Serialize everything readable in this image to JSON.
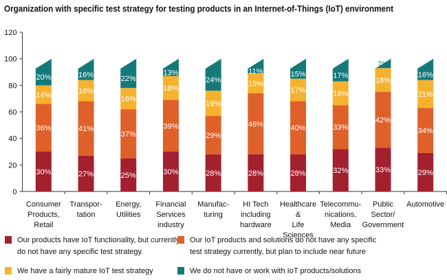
{
  "chart_data": {
    "type": "bar",
    "stacked": true,
    "title": "Organization with specific test strategy for testing products in an Internet-of-Things (IoT) environment",
    "xlabel": "",
    "ylabel": "",
    "ylim": [
      0,
      120
    ],
    "yticks": [
      0,
      20,
      40,
      60,
      80,
      100,
      120
    ],
    "grid": false,
    "legend_position": "bottom",
    "categories": [
      [
        "Consumer",
        "Products,",
        "Retail"
      ],
      [
        "Transpor-",
        "tation"
      ],
      [
        "Energy,",
        "Utilities"
      ],
      [
        "Financial",
        "Services",
        "industry"
      ],
      [
        "Manufac-",
        "turing"
      ],
      [
        "HI Tech",
        "including",
        "hardware"
      ],
      [
        "Healthcare",
        "&",
        "Life",
        "Sciences"
      ],
      [
        "Telecommu-",
        "nications,",
        "Media"
      ],
      [
        "Public",
        "Sector/",
        "Government"
      ],
      [
        "Automotive"
      ]
    ],
    "series": [
      {
        "name": "Our products have IoT functionality, but currently do not have any specific test strategy.",
        "legend_lines": [
          "Our products have IoT functionality, but currently",
          "do not have any specific test strategy."
        ],
        "color": "#a3202f",
        "values": [
          30,
          27,
          25,
          30,
          28,
          28,
          28,
          32,
          33,
          29
        ]
      },
      {
        "name": "Our IoT products and solutions do not have any specific test strategy currently, but plan to include near future",
        "legend_lines": [
          "Our IoT products and solutions do not have any specific",
          "test strategy currently, but plan to include near future"
        ],
        "color": "#e0602a",
        "values": [
          36,
          41,
          37,
          39,
          29,
          46,
          40,
          33,
          42,
          34
        ]
      },
      {
        "name": "We have a fairly mature IoT test strategy",
        "legend_lines": [
          "We have a fairly mature IoT test strategy"
        ],
        "color": "#f6b22f",
        "values": [
          14,
          16,
          16,
          18,
          19,
          15,
          17,
          18,
          18,
          21
        ]
      },
      {
        "name": "We do not  have or work with  IoT products/solutions",
        "legend_lines": [
          "We do not  have or work with  IoT products/solutions"
        ],
        "color": "#15797a",
        "values": [
          20,
          16,
          22,
          13,
          24,
          11,
          15,
          17,
          7,
          16
        ]
      }
    ],
    "value_suffix": "%"
  }
}
